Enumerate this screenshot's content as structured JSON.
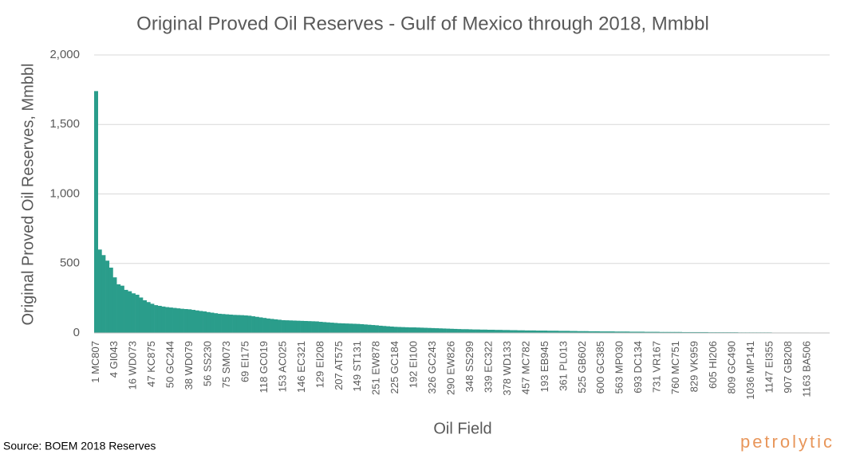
{
  "chart_data": {
    "type": "bar",
    "title": "Original Proved Oil Reserves - Gulf of Mexico through 2018, Mmbbl",
    "x_label": "Oil Field",
    "y_label": "Original Proved Oil Reserves, Mmbbl",
    "source": "Source: BOEM 2018 Reserves",
    "logo": "petrolytic",
    "color": "#2a9d8b",
    "grid": true,
    "ylim": [
      0,
      2000
    ],
    "yticks": [
      0,
      {
        "value": 500,
        "label": "500"
      },
      {
        "value": 1000,
        "label": "1,000"
      },
      {
        "value": 1500,
        "label": "1,500"
      },
      {
        "value": 2000,
        "label": "2,000"
      }
    ],
    "categories": [
      "1 MC807",
      null,
      null,
      null,
      null,
      "4 GI043",
      null,
      null,
      null,
      null,
      "16 WD073",
      null,
      null,
      null,
      null,
      "47 KC875",
      null,
      null,
      null,
      null,
      "50 GC244",
      null,
      null,
      null,
      null,
      "38 WD079",
      null,
      null,
      null,
      null,
      "56 SS230",
      null,
      null,
      null,
      null,
      "75 SM073",
      null,
      null,
      null,
      null,
      "69 EI175",
      null,
      null,
      null,
      null,
      "118 GC019",
      null,
      null,
      null,
      null,
      "153 AC025",
      null,
      null,
      null,
      null,
      "146 EC321",
      null,
      null,
      null,
      null,
      "129 EI208",
      null,
      null,
      null,
      null,
      "207 AT575",
      null,
      null,
      null,
      null,
      "149 ST131",
      null,
      null,
      null,
      null,
      "251 EW878",
      null,
      null,
      null,
      null,
      "225 GC184",
      null,
      null,
      null,
      null,
      "192 EI100",
      null,
      null,
      null,
      null,
      "326 GC243",
      null,
      null,
      null,
      null,
      "290 EW826",
      null,
      null,
      null,
      null,
      "348 SS299",
      null,
      null,
      null,
      null,
      "339 EC322",
      null,
      null,
      null,
      null,
      "378 WD133",
      null,
      null,
      null,
      null,
      "457 MC782",
      null,
      null,
      null,
      null,
      "193 EB945",
      null,
      null,
      null,
      null,
      "361 PL013",
      null,
      null,
      null,
      null,
      "525 GB602",
      null,
      null,
      null,
      null,
      "600 GC385",
      null,
      null,
      null,
      null,
      "563 MP030",
      null,
      null,
      null,
      null,
      "693 DC134",
      null,
      null,
      null,
      null,
      "731 VR167",
      null,
      null,
      null,
      null,
      "760 MC751",
      null,
      null,
      null,
      null,
      "829 VK959",
      null,
      null,
      null,
      null,
      "605 HI206",
      null,
      null,
      null,
      null,
      "809 GC490",
      null,
      null,
      null,
      null,
      "1036 MP141",
      null,
      null,
      null,
      null,
      "1147 EI355",
      null,
      null,
      null,
      null,
      "907 GB208",
      null,
      null,
      null,
      null,
      "1163 BA506",
      null,
      null,
      null,
      null
    ],
    "values": [
      1740,
      600,
      560,
      520,
      470,
      400,
      350,
      340,
      310,
      300,
      285,
      275,
      255,
      235,
      222,
      210,
      200,
      195,
      190,
      186,
      183,
      180,
      177,
      174,
      172,
      170,
      166,
      162,
      158,
      155,
      150,
      146,
      142,
      138,
      136,
      134,
      132,
      130,
      129,
      128,
      126,
      124,
      120,
      116,
      112,
      108,
      104,
      101,
      98,
      95,
      92,
      91,
      90,
      89,
      88,
      87,
      86,
      85,
      84,
      83,
      80,
      78,
      76,
      74,
      72,
      70,
      69,
      68,
      67,
      66,
      65,
      63,
      61,
      59,
      57,
      55,
      52,
      50,
      48,
      46,
      44,
      43,
      42,
      41,
      40,
      40,
      39,
      38,
      37,
      36,
      35,
      34,
      33,
      32,
      31,
      30,
      29,
      28,
      27,
      27,
      26,
      25,
      25,
      24,
      24,
      23,
      23,
      22,
      22,
      21,
      21,
      20,
      20,
      19,
      19,
      18,
      18,
      18,
      17,
      17,
      17,
      16,
      16,
      16,
      15,
      15,
      15,
      14,
      14,
      13,
      13,
      13,
      12,
      12,
      12,
      11,
      11,
      11,
      11,
      10,
      10,
      10,
      10,
      9,
      9,
      9,
      9,
      8,
      8,
      8,
      8,
      7,
      7,
      7,
      7,
      7,
      7,
      6,
      6,
      6,
      6,
      6,
      6,
      6,
      5,
      5,
      5,
      5,
      5,
      5,
      5,
      5,
      4,
      4,
      4,
      4,
      4,
      4,
      4,
      4,
      4,
      3,
      3,
      3,
      3,
      3,
      3,
      3,
      3,
      3,
      3,
      2,
      2,
      2,
      2
    ]
  }
}
